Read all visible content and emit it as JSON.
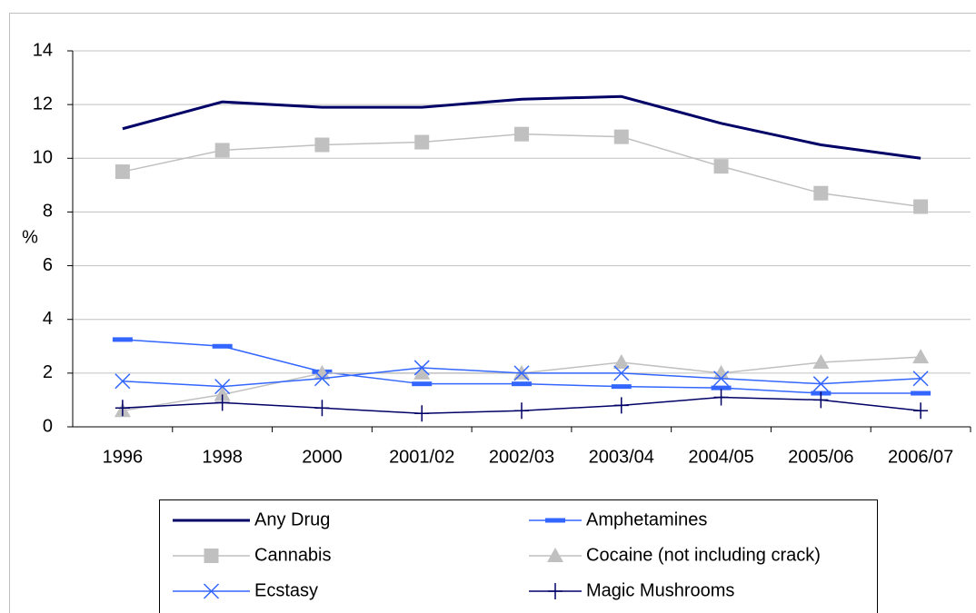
{
  "chart_data": {
    "type": "line",
    "y_label": "%",
    "categories": [
      "1996",
      "1998",
      "2000",
      "2001/02",
      "2002/03",
      "2003/04",
      "2004/05",
      "2005/06",
      "2006/07"
    ],
    "ylim": [
      0,
      14
    ],
    "yticks": [
      0,
      2,
      4,
      6,
      8,
      10,
      12,
      14
    ],
    "grid": true,
    "series": [
      {
        "name": "Any Drug",
        "color": "#000066",
        "marker": "none",
        "values": [
          11.1,
          12.1,
          11.9,
          11.9,
          12.2,
          12.3,
          11.3,
          10.5,
          10.0
        ]
      },
      {
        "name": "Amphetamines",
        "color": "#3366ff",
        "marker": "dash",
        "values": [
          3.25,
          3.0,
          2.05,
          1.6,
          1.6,
          1.5,
          1.45,
          1.25,
          1.25
        ]
      },
      {
        "name": "Cannabis",
        "color": "#c0c0c0",
        "marker": "square",
        "values": [
          9.5,
          10.3,
          10.5,
          10.6,
          10.9,
          10.8,
          9.7,
          8.7,
          8.2
        ]
      },
      {
        "name": "Cocaine (not including crack)",
        "color": "#c0c0c0",
        "marker": "triangle",
        "values": [
          0.6,
          1.2,
          2.0,
          2.0,
          2.0,
          2.4,
          2.0,
          2.4,
          2.6
        ]
      },
      {
        "name": "Ecstasy",
        "color": "#3366ff",
        "marker": "x",
        "values": [
          1.7,
          1.5,
          1.8,
          2.2,
          2.0,
          2.0,
          1.8,
          1.6,
          1.8
        ]
      },
      {
        "name": "Magic Mushrooms",
        "color": "#000066",
        "marker": "plus",
        "values": [
          0.7,
          0.9,
          0.7,
          0.5,
          0.6,
          0.8,
          1.1,
          1.0,
          0.6
        ]
      }
    ]
  }
}
